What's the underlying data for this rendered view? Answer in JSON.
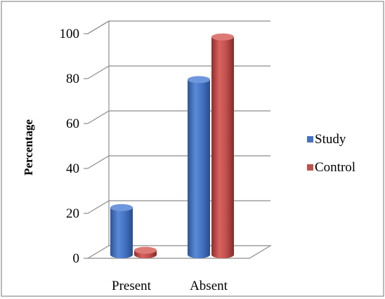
{
  "chart_data": {
    "type": "bar",
    "style": "3d-cylinder",
    "categories": [
      "Present",
      "Absent"
    ],
    "series": [
      {
        "name": "Study",
        "values": [
          21,
          78
        ],
        "color": "#4472c4"
      },
      {
        "name": "Control",
        "values": [
          2,
          97
        ],
        "color": "#c0504d"
      }
    ],
    "yticks": [
      "0",
      "20",
      "40",
      "60",
      "80",
      "100"
    ],
    "ylim": [
      0,
      100
    ],
    "ylabel": "Percentage",
    "xlabel": "",
    "title": "",
    "grid": true,
    "legend_position": "right"
  }
}
